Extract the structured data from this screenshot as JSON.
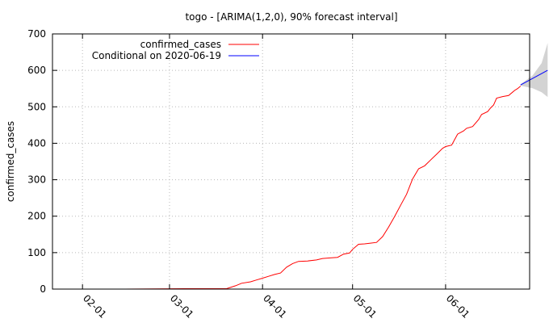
{
  "chart_data": {
    "type": "line",
    "title": "togo -  [ARIMA(1,2,0), 90% forecast interval]",
    "xlabel": "",
    "ylabel": "confirmed_cases",
    "xlim": [
      "2020-01-22",
      "2020-06-29"
    ],
    "ylim": [
      0,
      700
    ],
    "x_ticks": [
      "02-01",
      "03-01",
      "04-01",
      "05-01",
      "06-01"
    ],
    "x_tick_dates": [
      "2020-02-01",
      "2020-03-01",
      "2020-04-01",
      "2020-05-01",
      "2020-06-01"
    ],
    "y_ticks": [
      0,
      100,
      200,
      300,
      400,
      500,
      600,
      700
    ],
    "grid": true,
    "legend_position": "top-left",
    "series": [
      {
        "name": "confirmed_cases",
        "color": "#ff0000",
        "points": [
          [
            "2020-01-22",
            0
          ],
          [
            "2020-02-15",
            0
          ],
          [
            "2020-03-06",
            1
          ],
          [
            "2020-03-15",
            1
          ],
          [
            "2020-03-20",
            1
          ],
          [
            "2020-03-23",
            9
          ],
          [
            "2020-03-25",
            16
          ],
          [
            "2020-03-28",
            20
          ],
          [
            "2020-03-30",
            25
          ],
          [
            "2020-04-01",
            30
          ],
          [
            "2020-04-03",
            35
          ],
          [
            "2020-04-05",
            40
          ],
          [
            "2020-04-07",
            44
          ],
          [
            "2020-04-09",
            60
          ],
          [
            "2020-04-11",
            70
          ],
          [
            "2020-04-13",
            76
          ],
          [
            "2020-04-16",
            77
          ],
          [
            "2020-04-19",
            80
          ],
          [
            "2020-04-21",
            84
          ],
          [
            "2020-04-24",
            86
          ],
          [
            "2020-04-26",
            87
          ],
          [
            "2020-04-28",
            96
          ],
          [
            "2020-04-30",
            99
          ],
          [
            "2020-05-01",
            109
          ],
          [
            "2020-05-03",
            123
          ],
          [
            "2020-05-05",
            124
          ],
          [
            "2020-05-07",
            126
          ],
          [
            "2020-05-09",
            128
          ],
          [
            "2020-05-11",
            144
          ],
          [
            "2020-05-13",
            170
          ],
          [
            "2020-05-15",
            199
          ],
          [
            "2020-05-17",
            230
          ],
          [
            "2020-05-19",
            260
          ],
          [
            "2020-05-21",
            302
          ],
          [
            "2020-05-23",
            330
          ],
          [
            "2020-05-25",
            338
          ],
          [
            "2020-05-27",
            354
          ],
          [
            "2020-05-29",
            370
          ],
          [
            "2020-05-31",
            386
          ],
          [
            "2020-06-01",
            391
          ],
          [
            "2020-06-03",
            395
          ],
          [
            "2020-06-04",
            410
          ],
          [
            "2020-06-05",
            425
          ],
          [
            "2020-06-07",
            434
          ],
          [
            "2020-06-08",
            441
          ],
          [
            "2020-06-10",
            446
          ],
          [
            "2020-06-12",
            465
          ],
          [
            "2020-06-13",
            479
          ],
          [
            "2020-06-15",
            487
          ],
          [
            "2020-06-16",
            497
          ],
          [
            "2020-06-17",
            505
          ],
          [
            "2020-06-18",
            524
          ],
          [
            "2020-06-20",
            528
          ],
          [
            "2020-06-22",
            531
          ],
          [
            "2020-06-24",
            545
          ],
          [
            "2020-06-25",
            550
          ],
          [
            "2020-06-26",
            557
          ]
        ]
      },
      {
        "name": "Conditional on 2020-06-19",
        "color": "#0000ff",
        "points": [
          [
            "2020-06-26",
            560
          ],
          [
            "2020-07-05",
            600
          ]
        ]
      }
    ],
    "interval": {
      "color": "#d3d3d3",
      "upper": [
        [
          "2020-06-26",
          562
        ],
        [
          "2020-06-30",
          586
        ],
        [
          "2020-07-03",
          620
        ],
        [
          "2020-07-05",
          675
        ]
      ],
      "lower": [
        [
          "2020-06-26",
          558
        ],
        [
          "2020-06-30",
          551
        ],
        [
          "2020-07-03",
          540
        ],
        [
          "2020-07-05",
          527
        ]
      ]
    }
  }
}
